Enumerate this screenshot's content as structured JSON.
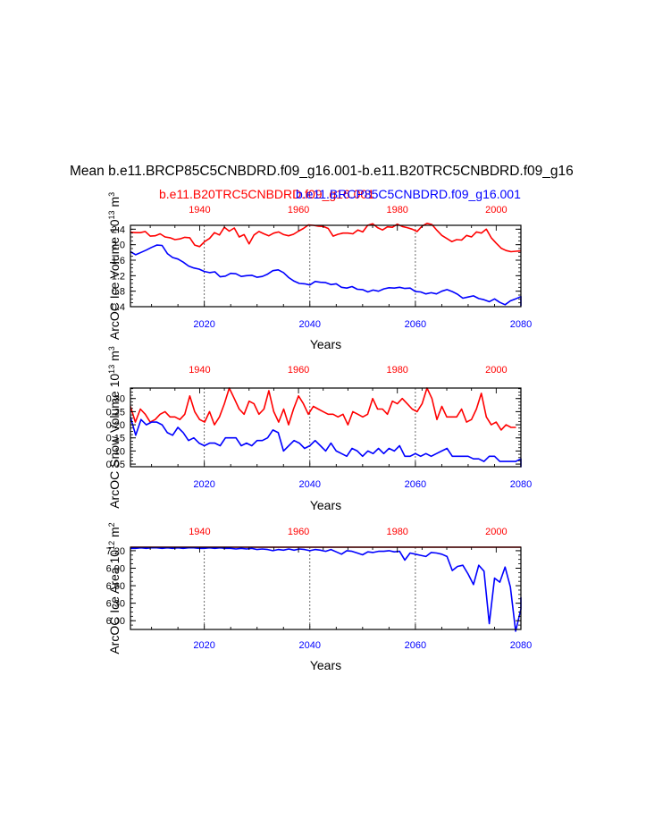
{
  "title": "Mean b.e11.BRCP85C5CNBDRD.f09_g16.001-b.e11.B20TRC5CNBDRD.f09_g16",
  "legend": {
    "red_label": "b.e11.B20TRC5CNBDRD.f09_g16.001",
    "blue_label": "b.e11.BRCP85C5CNBDRD.f09_g16.001"
  },
  "colors": {
    "red": "#ff0000",
    "blue": "#0000ff",
    "axis": "#000000"
  },
  "chart_data": [
    {
      "type": "line",
      "ylabel": "ArcOC Ice Volume 10",
      "ylabel_exp": "13",
      "ylabel_unit": " m",
      "ylabel_unit_exp": "3",
      "xlabel": "Years",
      "ylim": [
        0.4,
        2.5
      ],
      "yticks": [
        "0.4",
        "0.8",
        "1.2",
        "1.6",
        "2.0",
        "2.4"
      ],
      "ytick_values": [
        0.4,
        0.8,
        1.2,
        1.6,
        2.0,
        2.4
      ],
      "bottom_xlim": [
        2006,
        2080
      ],
      "bottom_xticks": [
        2020,
        2040,
        2060,
        2080
      ],
      "top_xlim": [
        1926,
        2005
      ],
      "top_xticks": [
        1940,
        1960,
        1980,
        2000
      ],
      "series": [
        {
          "name": "b.e11.B20TRC5CNBDRD.f09_g16.001",
          "color": "#ff0000",
          "x_start": 1926,
          "values": [
            2.32,
            2.31,
            2.31,
            2.34,
            2.22,
            2.23,
            2.28,
            2.2,
            2.18,
            2.13,
            2.15,
            2.19,
            2.18,
            1.99,
            1.95,
            2.08,
            2.16,
            2.31,
            2.25,
            2.45,
            2.35,
            2.43,
            2.2,
            2.26,
            2.02,
            2.25,
            2.34,
            2.28,
            2.23,
            2.3,
            2.33,
            2.26,
            2.23,
            2.27,
            2.35,
            2.42,
            2.51,
            2.5,
            2.48,
            2.47,
            2.42,
            2.22,
            2.27,
            2.3,
            2.3,
            2.28,
            2.38,
            2.33,
            2.5,
            2.54,
            2.44,
            2.38,
            2.46,
            2.45,
            2.53,
            2.47,
            2.44,
            2.4,
            2.34,
            2.48,
            2.55,
            2.52,
            2.37,
            2.24,
            2.16,
            2.08,
            2.13,
            2.12,
            2.24,
            2.2,
            2.33,
            2.3,
            2.4,
            2.18,
            2.04,
            1.91,
            1.85,
            1.82,
            1.83,
            1.84
          ]
        },
        {
          "name": "b.e11.BRCP85C5CNBDRD.f09_g16.001",
          "color": "#0000ff",
          "x_start": 2006,
          "values": [
            1.82,
            1.74,
            1.8,
            1.86,
            1.93,
            1.99,
            1.98,
            1.77,
            1.67,
            1.63,
            1.55,
            1.45,
            1.4,
            1.37,
            1.31,
            1.28,
            1.3,
            1.17,
            1.19,
            1.26,
            1.25,
            1.18,
            1.2,
            1.21,
            1.16,
            1.18,
            1.24,
            1.33,
            1.35,
            1.28,
            1.15,
            1.06,
            1.0,
            0.99,
            0.96,
            1.05,
            1.03,
            1.02,
            0.97,
            0.99,
            0.9,
            0.88,
            0.92,
            0.85,
            0.84,
            0.78,
            0.83,
            0.8,
            0.86,
            0.89,
            0.88,
            0.9,
            0.87,
            0.88,
            0.79,
            0.78,
            0.73,
            0.76,
            0.73,
            0.8,
            0.84,
            0.79,
            0.72,
            0.62,
            0.65,
            0.68,
            0.61,
            0.58,
            0.53,
            0.6,
            0.51,
            0.45,
            0.55,
            0.6,
            0.66,
            0.49,
            0.43,
            0.44,
            0.47
          ]
        }
      ]
    },
    {
      "type": "line",
      "ylabel": "ArcOC Snow Volume 10",
      "ylabel_exp": "13",
      "ylabel_unit": " m",
      "ylabel_unit_exp": "3",
      "xlabel": "Years",
      "ylim": [
        0.04,
        0.34
      ],
      "yticks": [
        "0.05",
        "0.10",
        "0.15",
        "0.20",
        "0.25",
        "0.30"
      ],
      "ytick_values": [
        0.05,
        0.1,
        0.15,
        0.2,
        0.25,
        0.3
      ],
      "bottom_xlim": [
        2006,
        2080
      ],
      "bottom_xticks": [
        2020,
        2040,
        2060,
        2080
      ],
      "top_xlim": [
        1926,
        2005
      ],
      "top_xticks": [
        1940,
        1960,
        1980,
        2000
      ],
      "series": [
        {
          "name": "b.e11.B20TRC5CNBDRD.f09_g16.001",
          "color": "#ff0000",
          "x_start": 1926,
          "values": [
            0.27,
            0.21,
            0.26,
            0.24,
            0.21,
            0.22,
            0.24,
            0.25,
            0.23,
            0.23,
            0.22,
            0.24,
            0.31,
            0.25,
            0.22,
            0.21,
            0.25,
            0.2,
            0.23,
            0.28,
            0.34,
            0.3,
            0.26,
            0.24,
            0.29,
            0.28,
            0.24,
            0.26,
            0.33,
            0.25,
            0.21,
            0.26,
            0.2,
            0.26,
            0.31,
            0.28,
            0.24,
            0.27,
            0.26,
            0.25,
            0.24,
            0.24,
            0.23,
            0.24,
            0.2,
            0.25,
            0.24,
            0.23,
            0.24,
            0.3,
            0.26,
            0.26,
            0.24,
            0.29,
            0.28,
            0.3,
            0.28,
            0.26,
            0.25,
            0.28,
            0.34,
            0.3,
            0.22,
            0.27,
            0.23,
            0.23,
            0.23,
            0.26,
            0.21,
            0.22,
            0.26,
            0.32,
            0.23,
            0.2,
            0.21,
            0.18,
            0.2,
            0.19,
            0.19
          ]
        },
        {
          "name": "b.e11.BRCP85C5CNBDRD.f09_g16.001",
          "color": "#0000ff",
          "x_start": 2006,
          "values": [
            0.23,
            0.16,
            0.22,
            0.2,
            0.21,
            0.21,
            0.2,
            0.17,
            0.16,
            0.19,
            0.17,
            0.14,
            0.15,
            0.13,
            0.12,
            0.13,
            0.13,
            0.12,
            0.15,
            0.15,
            0.15,
            0.12,
            0.13,
            0.12,
            0.14,
            0.14,
            0.15,
            0.18,
            0.17,
            0.1,
            0.12,
            0.14,
            0.13,
            0.11,
            0.12,
            0.14,
            0.12,
            0.1,
            0.13,
            0.1,
            0.09,
            0.08,
            0.11,
            0.1,
            0.08,
            0.1,
            0.09,
            0.11,
            0.09,
            0.11,
            0.1,
            0.12,
            0.08,
            0.08,
            0.09,
            0.08,
            0.09,
            0.08,
            0.09,
            0.1,
            0.11,
            0.08,
            0.08,
            0.08,
            0.08,
            0.07,
            0.07,
            0.06,
            0.08,
            0.08,
            0.06,
            0.06,
            0.06,
            0.06,
            0.07,
            0.04,
            0.04,
            0.05
          ]
        }
      ]
    },
    {
      "type": "line",
      "ylabel": "ArcOC Ice Area 10",
      "ylabel_exp": "12",
      "ylabel_unit": " m",
      "ylabel_unit_exp": "2",
      "xlabel": "Years",
      "ylim": [
        5.85,
        7.26
      ],
      "yticks": [
        "6.00",
        "6.30",
        "6.60",
        "6.90",
        "7.20"
      ],
      "ytick_values": [
        6.0,
        6.3,
        6.6,
        6.9,
        7.2
      ],
      "bottom_xlim": [
        2006,
        2080
      ],
      "bottom_xticks": [
        2020,
        2040,
        2060,
        2080
      ],
      "top_xlim": [
        1926,
        2005
      ],
      "top_xticks": [
        1940,
        1960,
        1980,
        2000
      ],
      "series": [
        {
          "name": "b.e11.B20TRC5CNBDRD.f09_g16.001",
          "color": "#ff0000",
          "x_start": 1926,
          "values": [
            7.26,
            7.26,
            7.26,
            7.26,
            7.26,
            7.26,
            7.26,
            7.26,
            7.26,
            7.26,
            7.26,
            7.26,
            7.26,
            7.26,
            7.26,
            7.26,
            7.26,
            7.26,
            7.26,
            7.26,
            7.26,
            7.26,
            7.26,
            7.26,
            7.26,
            7.26,
            7.26,
            7.26,
            7.26,
            7.26,
            7.26,
            7.26,
            7.26,
            7.26,
            7.26,
            7.26,
            7.26,
            7.26,
            7.26,
            7.26,
            7.26,
            7.26,
            7.26,
            7.26,
            7.26,
            7.26,
            7.26,
            7.26,
            7.26,
            7.26,
            7.26,
            7.26,
            7.26,
            7.26,
            7.26,
            7.26,
            7.26,
            7.26,
            7.26,
            7.26,
            7.26,
            7.26,
            7.26,
            7.26,
            7.26,
            7.26,
            7.26,
            7.26,
            7.26,
            7.26,
            7.26,
            7.26,
            7.26,
            7.26,
            7.26,
            7.26,
            7.26,
            7.26,
            7.26,
            7.26
          ]
        },
        {
          "name": "b.e11.BRCP85C5CNBDRD.f09_g16.001",
          "color": "#0000ff",
          "x_start": 2006,
          "values": [
            7.24,
            7.24,
            7.25,
            7.24,
            7.25,
            7.25,
            7.24,
            7.25,
            7.24,
            7.25,
            7.24,
            7.25,
            7.25,
            7.24,
            7.24,
            7.25,
            7.24,
            7.25,
            7.24,
            7.24,
            7.23,
            7.24,
            7.23,
            7.24,
            7.22,
            7.23,
            7.22,
            7.2,
            7.22,
            7.21,
            7.23,
            7.21,
            7.23,
            7.22,
            7.2,
            7.22,
            7.21,
            7.19,
            7.22,
            7.18,
            7.14,
            7.2,
            7.19,
            7.16,
            7.13,
            7.18,
            7.17,
            7.19,
            7.19,
            7.2,
            7.18,
            7.19,
            7.04,
            7.16,
            7.14,
            7.12,
            7.1,
            7.17,
            7.16,
            7.14,
            7.1,
            6.86,
            6.93,
            6.95,
            6.8,
            6.62,
            6.95,
            6.85,
            5.95,
            6.73,
            6.66,
            6.92,
            6.58,
            5.82,
            6.2,
            6.4
          ]
        }
      ]
    }
  ]
}
